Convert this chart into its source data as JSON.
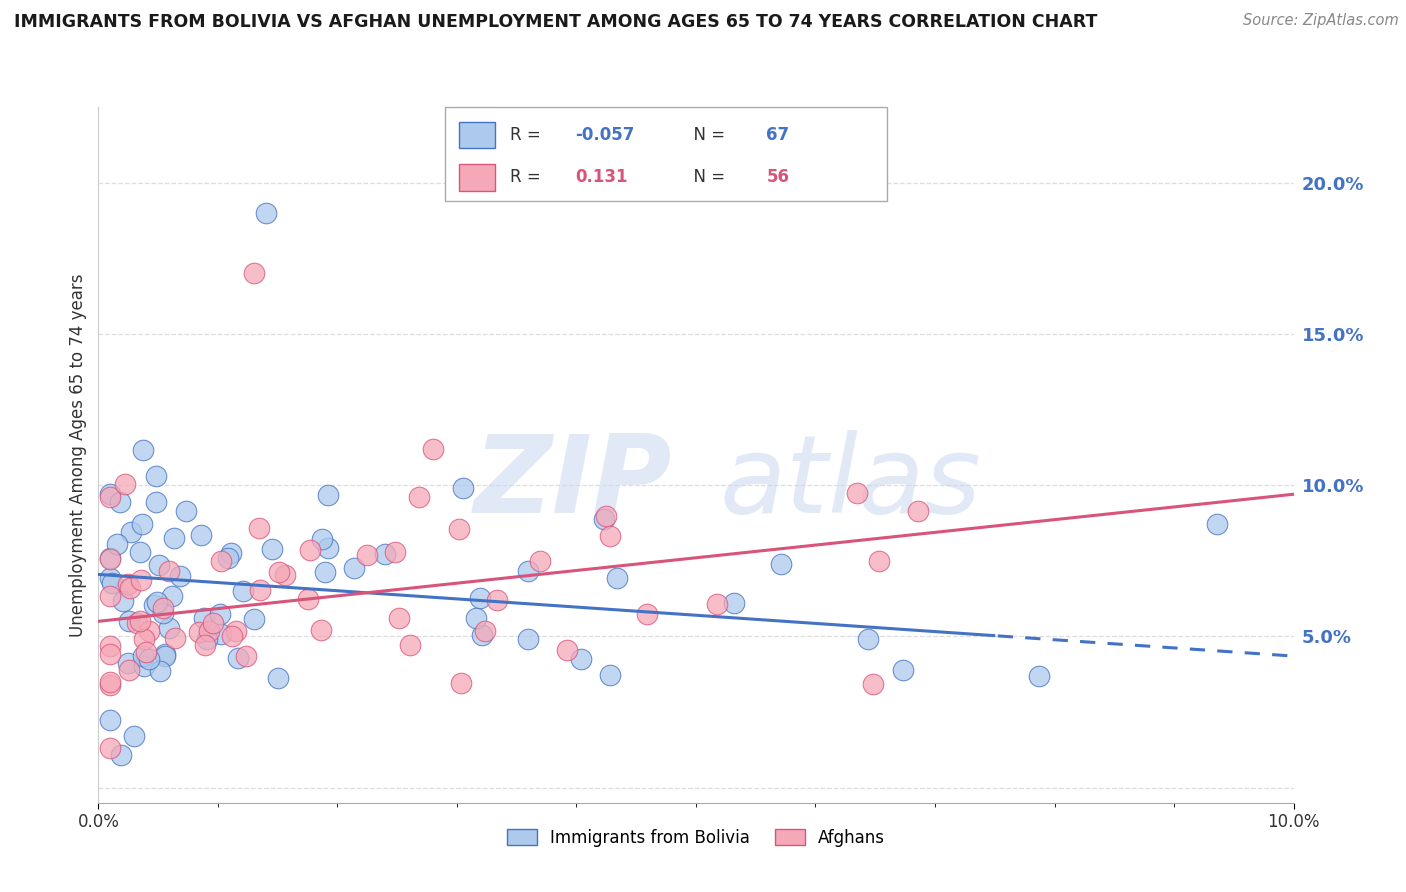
{
  "title": "IMMIGRANTS FROM BOLIVIA VS AFGHAN UNEMPLOYMENT AMONG AGES 65 TO 74 YEARS CORRELATION CHART",
  "source": "Source: ZipAtlas.com",
  "ylabel": "Unemployment Among Ages 65 to 74 years",
  "xlim": [
    0.0,
    0.1
  ],
  "ylim": [
    -0.005,
    0.225
  ],
  "yticks": [
    0.0,
    0.05,
    0.1,
    0.15,
    0.2
  ],
  "ytick_labels": [
    "",
    "5.0%",
    "10.0%",
    "15.0%",
    "20.0%"
  ],
  "bolivia_color": "#adc9eb",
  "afghan_color": "#f5a8b8",
  "bolivia_line_color": "#4472C4",
  "afghan_line_color": "#D9547A",
  "legend_bolivia_label": "Immigrants from Bolivia",
  "legend_afghan_label": "Afghans",
  "bolivia_R": "-0.057",
  "bolivia_N": "67",
  "afghan_R": "0.131",
  "afghan_N": "56",
  "watermark_zip": "ZIP",
  "watermark_atlas": "atlas",
  "background_color": "#ffffff",
  "grid_color": "#dddddd",
  "bolivia_intercept": 0.0705,
  "bolivia_slope": -0.27,
  "afghan_intercept": 0.055,
  "afghan_slope": 0.42
}
